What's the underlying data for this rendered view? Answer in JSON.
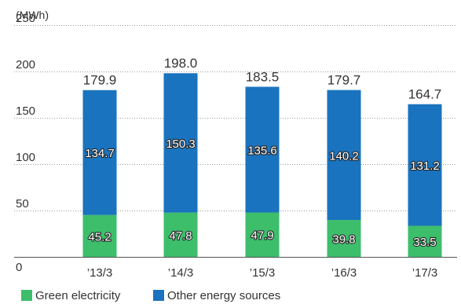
{
  "chart_data": {
    "type": "bar",
    "stacked": true,
    "title": "",
    "unit_label": "(MWh)",
    "xlabel": "",
    "ylabel": "",
    "ylim": [
      0,
      250
    ],
    "yticks": [
      0,
      50,
      100,
      150,
      200,
      250
    ],
    "categories": [
      "’13/3",
      "’14/3",
      "’15/3",
      "’16/3",
      "’17/3"
    ],
    "series": [
      {
        "name": "Green electricity",
        "values": [
          45.2,
          47.8,
          47.9,
          39.8,
          33.5
        ],
        "color": "#3cbe6b"
      },
      {
        "name": "Other energy sources",
        "values": [
          134.7,
          150.3,
          135.6,
          140.2,
          131.2
        ],
        "color": "#1a73be"
      }
    ],
    "totals": [
      179.9,
      198.0,
      183.5,
      179.7,
      164.7
    ],
    "grid": true,
    "legend_position": "bottom-left"
  }
}
